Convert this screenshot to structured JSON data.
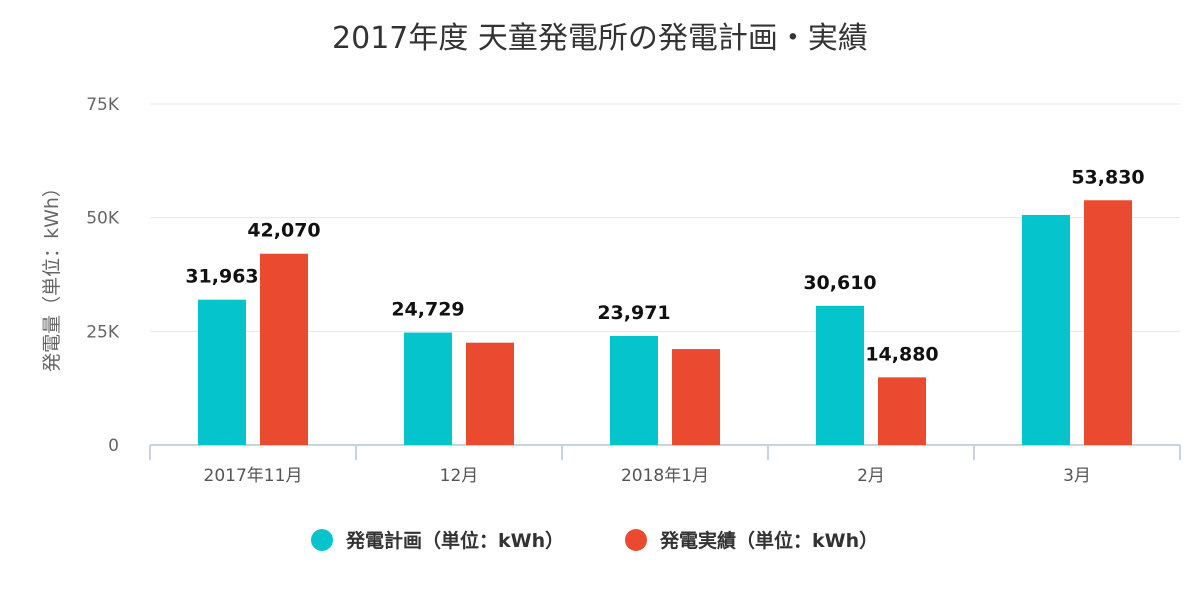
{
  "chart_data": {
    "type": "bar",
    "title": "2017年度 天童発電所の発電計画・実績",
    "ylabel": "発電量（単位：kWh）",
    "xlabel": "",
    "categories": [
      "2017年11月",
      "12月",
      "2018年1月",
      "2月",
      "3月"
    ],
    "ylim": [
      0,
      75000
    ],
    "yticks": [
      0,
      25000,
      50000,
      75000
    ],
    "ytick_labels": [
      "0",
      "25K",
      "50K",
      "75K"
    ],
    "grid": true,
    "legend_position": "bottom",
    "series": [
      {
        "name": "発電計画（単位：kWh）",
        "color": "#06c4cc",
        "values": [
          31963,
          24729,
          23971,
          30610,
          50600
        ],
        "labels": [
          "31,963",
          "24,729",
          "23,971",
          "30,610",
          ""
        ]
      },
      {
        "name": "発電実績（単位：kWh）",
        "color": "#ea4a2f",
        "values": [
          42070,
          22500,
          21100,
          14880,
          53830
        ],
        "labels": [
          "42,070",
          "",
          "",
          "14,880",
          "53,830"
        ]
      }
    ]
  }
}
